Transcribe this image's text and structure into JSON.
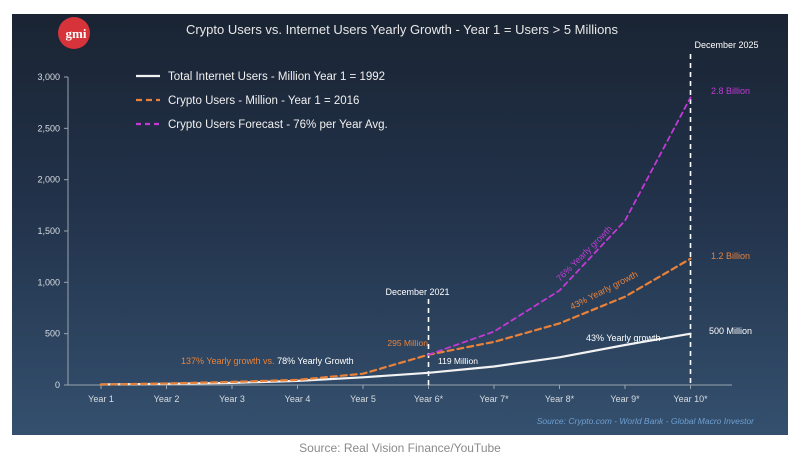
{
  "logo_text": "gmi",
  "caption": "Source: Real Vision Finance/YouTube",
  "colors": {
    "internet": "#f2f2f2",
    "crypto": "#e8823a",
    "forecast": "#c23ad6",
    "text": "#e8e8e8"
  },
  "chart_data": {
    "type": "line",
    "title": "Crypto Users vs. Internet Users Yearly Growth - Year 1 = Users > 5 Millions",
    "xlabel": "",
    "ylabel": "",
    "ylim": [
      0,
      3000
    ],
    "yticks": [
      "0",
      "500",
      "1,000",
      "1,500",
      "2,000",
      "2,500",
      "3,000"
    ],
    "categories": [
      "Year 1",
      "Year 2",
      "Year 3",
      "Year 4",
      "Year 5",
      "Year 6*",
      "Year 7*",
      "Year 8*",
      "Year 9*",
      "Year 10*"
    ],
    "legend_position": "top-left",
    "series": [
      {
        "name": "Total Internet Users - Million Year 1 = 1992",
        "style": "solid",
        "values": [
          5,
          12,
          20,
          40,
          75,
          119,
          180,
          270,
          390,
          500
        ]
      },
      {
        "name": "Crypto Users - Million - Year 1 = 2016",
        "style": "dashed",
        "values": [
          5,
          15,
          30,
          50,
          110,
          295,
          420,
          600,
          860,
          1230
        ]
      },
      {
        "name": "Crypto Users Forecast - 76% per Year Avg.",
        "style": "dashed",
        "values": [
          null,
          null,
          null,
          null,
          null,
          295,
          520,
          920,
          1600,
          2800
        ]
      }
    ],
    "annotations": {
      "dec2021": "December 2021",
      "dec2025": "December 2025",
      "growth_137": "137% Yearly growth vs.",
      "growth_78": "78% Yearly Growth",
      "crypto_295": "295 Million",
      "internet_119": "119 Million",
      "internet_43": "43% Yearly growth",
      "crypto_43": "43% Yearly growth",
      "forecast_76": "76% Yearly growth",
      "end_500": "500 Million",
      "end_12": "1.2 Billion",
      "end_28": "2.8 Billion",
      "source": "Source: Crypto.com - World Bank - Global Macro Investor"
    }
  }
}
